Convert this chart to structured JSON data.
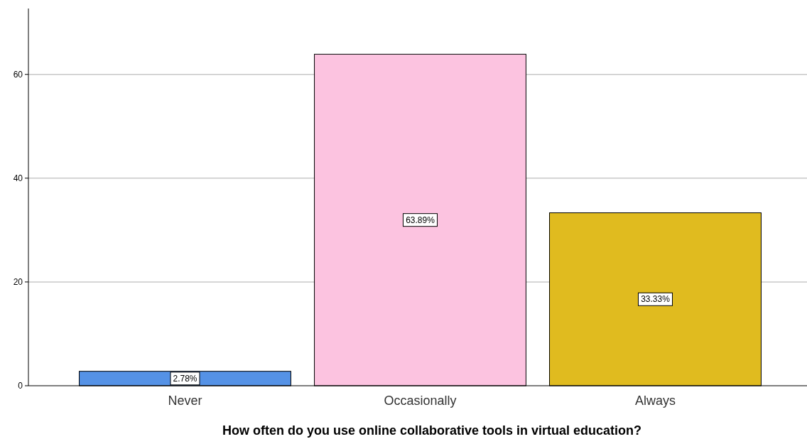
{
  "chart_data": {
    "type": "bar",
    "xlabel": "How often do you use online collaborative tools in virtual education?",
    "categories": [
      "Never",
      "Occasionally",
      "Always"
    ],
    "values": [
      2.78,
      63.89,
      33.33
    ],
    "colors": [
      "#5592e6",
      "#fcc3e0",
      "#e0bb1f"
    ],
    "value_labels": [
      "2.78%",
      "63.89%",
      "33.33%"
    ],
    "ylim": [
      0,
      72.7
    ],
    "yticks": [
      0,
      20,
      40,
      60
    ],
    "grid": "y"
  }
}
